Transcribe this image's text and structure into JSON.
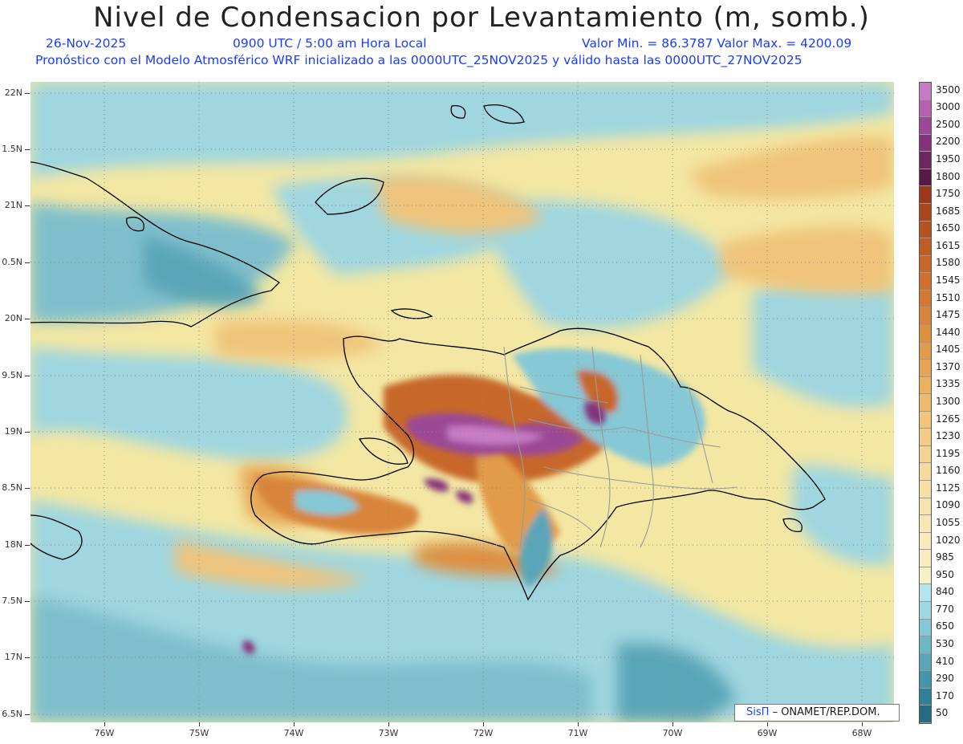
{
  "header": {
    "title": "Nivel de Condensacion por Levantamiento (m, somb.)",
    "date": "26-Nov-2025",
    "time": "0900 UTC / 5:00 am Hora Local",
    "minmax": "Valor Min. = 86.3787  Valor Max. = 4200.09",
    "model_line": "Pronóstico con el Modelo Atmosférico WRF inicializado a las 0000UTC_25NOV2025 y válido hasta las  0000UTC_27NOV2025"
  },
  "map": {
    "lat_labels": [
      "22N",
      "1.5N",
      "21N",
      "0.5N",
      "20N",
      "9.5N",
      "19N",
      "8.5N",
      "18N",
      "7.5N",
      "17N",
      "6.5N"
    ],
    "lon_labels": [
      "76W",
      "75W",
      "74W",
      "73W",
      "72W",
      "71W",
      "70W",
      "69W",
      "68W"
    ],
    "credit_brand": "SisΠ",
    "credit_text": "– ONAMET/REP.DOM."
  },
  "colorbar": {
    "labels": [
      "3500",
      "3000",
      "2500",
      "2200",
      "1950",
      "1800",
      "1750",
      "1685",
      "1650",
      "1615",
      "1580",
      "1545",
      "1510",
      "1475",
      "1440",
      "1405",
      "1370",
      "1335",
      "1300",
      "1265",
      "1230",
      "1195",
      "1160",
      "1125",
      "1090",
      "1055",
      "1020",
      "985",
      "950",
      "840",
      "770",
      "650",
      "530",
      "410",
      "290",
      "170",
      "50"
    ],
    "colors": [
      "#c77bc4",
      "#b462b0",
      "#9c4895",
      "#833379",
      "#6c2660",
      "#571a45",
      "#9a3a1a",
      "#a8461e",
      "#b45223",
      "#bf5d27",
      "#c7672b",
      "#cd7030",
      "#d27a35",
      "#d8853b",
      "#dd9042",
      "#e29b4a",
      "#e6a655",
      "#eab161",
      "#edbb6d",
      "#f0c47a",
      "#f2cc86",
      "#f4d392",
      "#f5d99d",
      "#f6dfa7",
      "#f7e3af",
      "#f7e7b6",
      "#f7eabc",
      "#f7edc1",
      "#f7f0c7",
      "#b3e5ee",
      "#9ed8e2",
      "#86c8d5",
      "#6fb7c7",
      "#5aa6b8",
      "#4694a8",
      "#357f96",
      "#276b83"
    ]
  }
}
